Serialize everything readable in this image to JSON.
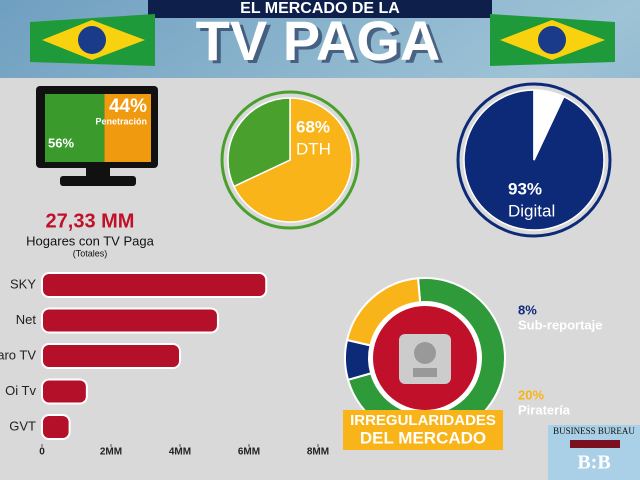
{
  "header": {
    "line1": "EL MERCADO DE LA",
    "line2": "TV PAGA"
  },
  "stat": {
    "value": "27,33 MM",
    "label": "Hogares con TV Paga",
    "note": "(Totales)"
  },
  "logo": {
    "name": "BUSINESS BUREAU",
    "mark": "B:B"
  },
  "chart_data": [
    {
      "type": "stacked",
      "categories": [
        null,
        "Penetración"
      ],
      "values": [
        56,
        44
      ],
      "value_labels": [
        "56%",
        "44%"
      ],
      "colors": [
        "#3a9a2c",
        "#f09a10"
      ]
    },
    {
      "type": "pie",
      "categories": [
        "DTH",
        null
      ],
      "values": [
        68,
        32
      ],
      "value_labels": [
        "68%",
        null
      ],
      "colors": [
        "#f8b418",
        "#4aa02c"
      ]
    },
    {
      "type": "pie",
      "categories": [
        "Digital",
        null
      ],
      "values": [
        93,
        7
      ],
      "value_labels": [
        "93%",
        null
      ],
      "colors": [
        "#0d2a78",
        "#ffffff"
      ]
    },
    {
      "type": "bar",
      "categories": [
        "SKY",
        "Net",
        "Claro TV",
        "Oi Tv",
        "GVT"
      ],
      "values": [
        6.5,
        5.1,
        4.0,
        1.3,
        0.8
      ],
      "color": "#b5102a",
      "xlim": [
        0,
        8
      ],
      "xticks": [
        0,
        {
          "value": 2,
          "label": "2MM"
        },
        {
          "value": 4,
          "label": "4MM"
        },
        {
          "value": 6,
          "label": "6MM"
        },
        {
          "value": 8,
          "label": "8MM"
        }
      ]
    },
    {
      "type": "donut",
      "title": "IRREGULARIDADES",
      "subtitle": "DEL MERCADO",
      "categories": [
        null,
        "Sub-reportaje",
        "Piratería"
      ],
      "values": [
        72,
        8,
        20
      ],
      "value_labels": [
        null,
        "8%",
        "20%"
      ],
      "colors": [
        "#2e9a3a",
        "#0d2a78",
        "#f8b418"
      ]
    }
  ]
}
